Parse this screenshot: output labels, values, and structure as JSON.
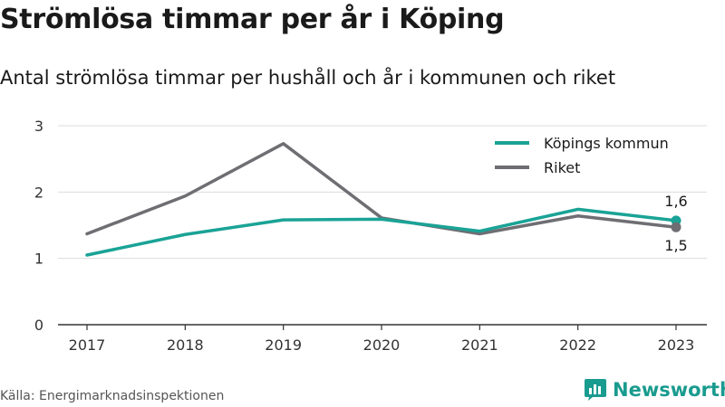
{
  "title": "Strömlösa timmar per år i Köping",
  "subtitle": "Antal strömlösa timmar per hushåll och år i kommunen och riket",
  "source": "Källa: Energimarknadsinspektionen",
  "brand": "Newsworthy",
  "colors": {
    "kommun": "#1aa396",
    "riket": "#6e6e73",
    "grid": "#dcdcdc",
    "brand": "#1a9b8f"
  },
  "chart_data": {
    "type": "line",
    "x": [
      "2017",
      "2018",
      "2019",
      "2020",
      "2021",
      "2022",
      "2023"
    ],
    "yticks": [
      "0",
      "1",
      "2",
      "3"
    ],
    "ylim": [
      0,
      3
    ],
    "grid": true,
    "legend_position": "top-right",
    "series": [
      {
        "name": "Köpings kommun",
        "values": [
          1.05,
          1.36,
          1.58,
          1.59,
          1.41,
          1.74,
          1.57
        ],
        "end_label": "1,6"
      },
      {
        "name": "Riket",
        "values": [
          1.37,
          1.94,
          2.73,
          1.61,
          1.37,
          1.64,
          1.47
        ],
        "end_label": "1,5"
      }
    ]
  }
}
